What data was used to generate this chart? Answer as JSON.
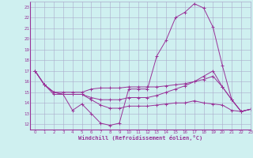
{
  "background_color": "#cff0f0",
  "grid_color": "#aaaacc",
  "line_color": "#993399",
  "xlim": [
    -0.5,
    23
  ],
  "ylim": [
    11.5,
    23.5
  ],
  "yticks": [
    12,
    13,
    14,
    15,
    16,
    17,
    18,
    19,
    20,
    21,
    22,
    23
  ],
  "xticks": [
    0,
    1,
    2,
    3,
    4,
    5,
    6,
    7,
    8,
    9,
    10,
    11,
    12,
    13,
    14,
    15,
    16,
    17,
    18,
    19,
    20,
    21,
    22,
    23
  ],
  "xlabel": "Windchill (Refroidissement éolien,°C)",
  "series": [
    {
      "x": [
        0,
        1,
        2,
        3,
        4,
        5,
        6,
        7,
        8,
        9,
        10,
        11,
        12,
        13,
        14,
        15,
        16,
        17,
        18,
        19,
        20,
        21,
        22,
        23
      ],
      "y": [
        17.0,
        15.7,
        14.8,
        14.8,
        13.3,
        13.9,
        13.0,
        12.1,
        11.9,
        12.1,
        15.3,
        15.3,
        15.3,
        18.4,
        19.9,
        22.0,
        22.5,
        23.3,
        22.9,
        21.1,
        17.5,
        14.3,
        13.2,
        13.4
      ]
    },
    {
      "x": [
        0,
        1,
        2,
        3,
        4,
        5,
        6,
        7,
        8,
        9,
        10,
        11,
        12,
        13,
        14,
        15,
        16,
        17,
        18,
        19,
        20,
        21,
        22,
        23
      ],
      "y": [
        17.0,
        15.7,
        15.0,
        14.8,
        14.8,
        14.8,
        14.5,
        14.3,
        14.3,
        14.3,
        14.5,
        14.5,
        14.5,
        14.7,
        15.0,
        15.3,
        15.6,
        16.0,
        16.5,
        17.0,
        15.5,
        14.3,
        13.2,
        13.4
      ]
    },
    {
      "x": [
        0,
        1,
        2,
        3,
        4,
        5,
        6,
        7,
        8,
        9,
        10,
        11,
        12,
        13,
        14,
        15,
        16,
        17,
        18,
        19,
        20,
        21,
        22,
        23
      ],
      "y": [
        17.0,
        15.7,
        15.0,
        15.0,
        15.0,
        15.0,
        15.3,
        15.4,
        15.4,
        15.4,
        15.5,
        15.5,
        15.5,
        15.5,
        15.6,
        15.7,
        15.8,
        16.0,
        16.2,
        16.5,
        15.5,
        14.3,
        13.2,
        13.4
      ]
    },
    {
      "x": [
        0,
        1,
        2,
        3,
        4,
        5,
        6,
        7,
        8,
        9,
        10,
        11,
        12,
        13,
        14,
        15,
        16,
        17,
        18,
        19,
        20,
        21,
        22,
        23
      ],
      "y": [
        17.0,
        15.7,
        15.0,
        14.8,
        14.8,
        14.8,
        14.3,
        13.8,
        13.5,
        13.5,
        13.7,
        13.7,
        13.7,
        13.8,
        13.9,
        14.0,
        14.0,
        14.2,
        14.0,
        13.9,
        13.8,
        13.3,
        13.2,
        13.4
      ]
    }
  ]
}
